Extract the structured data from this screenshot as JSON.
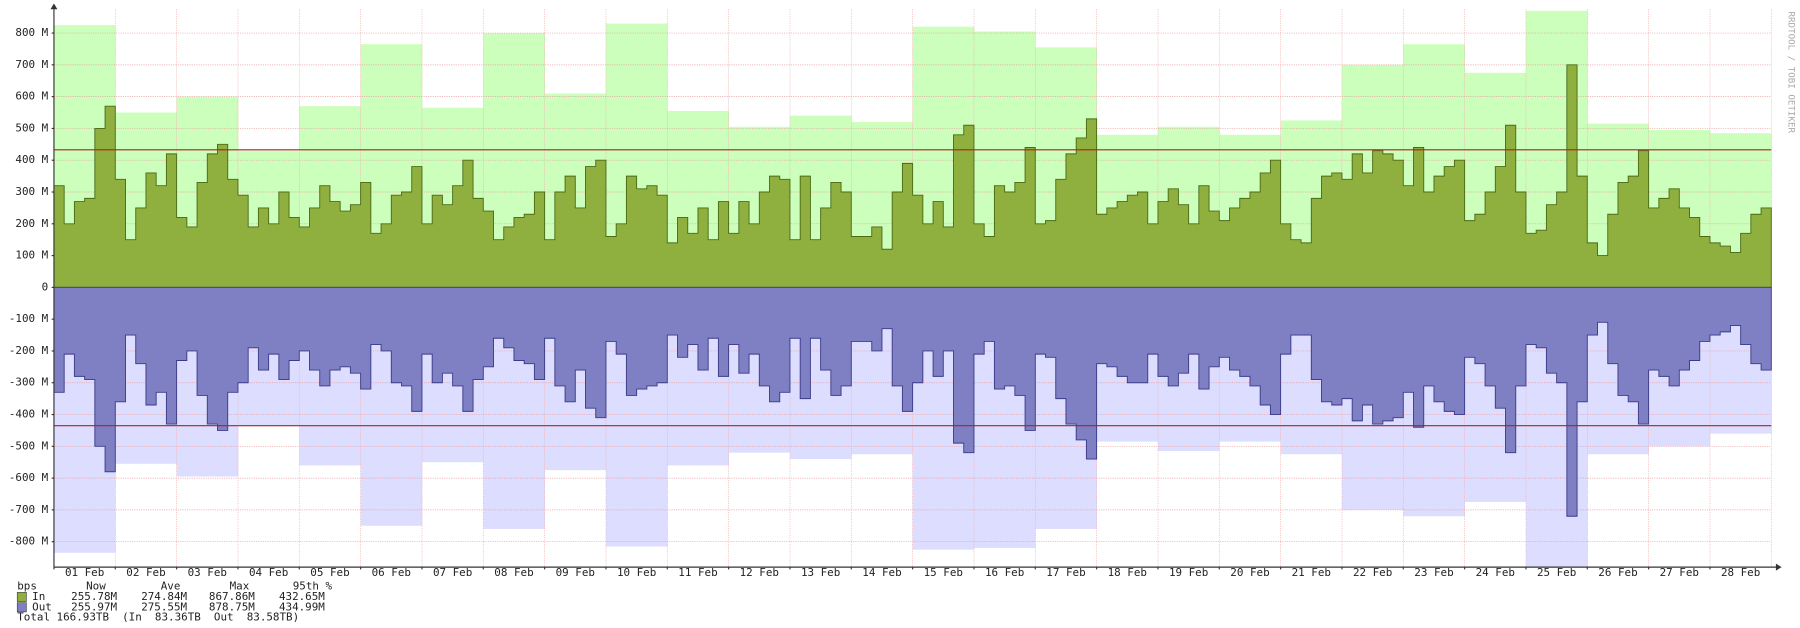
{
  "chart_data": {
    "type": "rrd-traffic",
    "categories": [
      "01 Feb",
      "02 Feb",
      "03 Feb",
      "04 Feb",
      "05 Feb",
      "06 Feb",
      "07 Feb",
      "08 Feb",
      "09 Feb",
      "10 Feb",
      "11 Feb",
      "12 Feb",
      "13 Feb",
      "14 Feb",
      "15 Feb",
      "16 Feb",
      "17 Feb",
      "18 Feb",
      "19 Feb",
      "20 Feb",
      "21 Feb",
      "22 Feb",
      "23 Feb",
      "24 Feb",
      "25 Feb",
      "26 Feb",
      "27 Feb",
      "28 Feb"
    ],
    "ylim": [
      -880,
      875
    ],
    "yticks": [
      {
        "value": -800,
        "label": "-800 M"
      },
      {
        "value": -700,
        "label": "-700 M"
      },
      {
        "value": -600,
        "label": "-600 M"
      },
      {
        "value": -500,
        "label": "-500 M"
      },
      {
        "value": -400,
        "label": "-400 M"
      },
      {
        "value": -300,
        "label": "-300 M"
      },
      {
        "value": -200,
        "label": "-200 M"
      },
      {
        "value": -100,
        "label": "-100 M"
      },
      0,
      {
        "value": 100,
        "label": "100 M"
      },
      {
        "value": 200,
        "label": "200 M"
      },
      {
        "value": 300,
        "label": "300 M"
      },
      {
        "value": 400,
        "label": "400 M"
      },
      {
        "value": 500,
        "label": "500 M"
      },
      {
        "value": 600,
        "label": "600 M"
      },
      {
        "value": 700,
        "label": "700 M"
      },
      {
        "value": 800,
        "label": "800 M"
      }
    ],
    "grid": true,
    "daily_max": [
      {
        "color": "#ccffbb",
        "values": [
          825,
          550,
          600,
          430,
          570,
          765,
          565,
          800,
          610,
          830,
          555,
          505,
          540,
          520,
          820,
          805,
          755,
          480,
          505,
          480,
          525,
          700,
          765,
          675,
          870,
          515,
          495,
          485
        ]
      },
      {
        "color": "#ddddff",
        "values": [
          -835,
          -555,
          -595,
          -435,
          -560,
          -750,
          -550,
          -760,
          -575,
          -815,
          -560,
          -520,
          -540,
          -525,
          -825,
          -820,
          -760,
          -485,
          -515,
          -485,
          -525,
          -700,
          -720,
          -675,
          -880,
          -525,
          -500,
          -460
        ]
      }
    ],
    "series": [
      {
        "name": "In",
        "color": "#8fb03f",
        "line_color": "#4a6a16",
        "values": [
          [
            320,
            200,
            270,
            280,
            500,
            570
          ],
          [
            340,
            150,
            250,
            360,
            320,
            420
          ],
          [
            220,
            190,
            330,
            420,
            450,
            340
          ],
          [
            290,
            190,
            250,
            200,
            300,
            220
          ],
          [
            190,
            250,
            320,
            270,
            240,
            260
          ],
          [
            330,
            170,
            200,
            290,
            300,
            380
          ],
          [
            200,
            290,
            260,
            320,
            400,
            280
          ],
          [
            240,
            150,
            190,
            220,
            230,
            300
          ],
          [
            150,
            300,
            350,
            250,
            380,
            400
          ],
          [
            160,
            200,
            350,
            310,
            320,
            290
          ],
          [
            140,
            220,
            170,
            250,
            150,
            270
          ],
          [
            170,
            270,
            200,
            300,
            350,
            340
          ],
          [
            150,
            350,
            150,
            250,
            330,
            300
          ],
          [
            160,
            160,
            190,
            120,
            300,
            390
          ],
          [
            290,
            200,
            270,
            190,
            480,
            510
          ],
          [
            200,
            160,
            320,
            300,
            330,
            440
          ],
          [
            200,
            210,
            340,
            420,
            470,
            530
          ],
          [
            230,
            250,
            270,
            290,
            300,
            200
          ],
          [
            270,
            310,
            260,
            200,
            320,
            240
          ],
          [
            210,
            250,
            280,
            300,
            360,
            400
          ],
          [
            200,
            150,
            140,
            280,
            350,
            360
          ],
          [
            340,
            420,
            360,
            430,
            420,
            400
          ],
          [
            320,
            440,
            300,
            350,
            380,
            400
          ],
          [
            210,
            230,
            300,
            380,
            510,
            300
          ],
          [
            170,
            180,
            260,
            300,
            700,
            350
          ],
          [
            140,
            100,
            230,
            330,
            350,
            430
          ],
          [
            250,
            280,
            310,
            250,
            220,
            160
          ],
          [
            140,
            130,
            110,
            170,
            230,
            250
          ]
        ]
      },
      {
        "name": "Out",
        "color": "#7f7fc4",
        "line_color": "#3a3a88",
        "values": [
          [
            -330,
            -210,
            -280,
            -290,
            -500,
            -580
          ],
          [
            -360,
            -150,
            -240,
            -370,
            -330,
            -430
          ],
          [
            -230,
            -200,
            -340,
            -430,
            -450,
            -330
          ],
          [
            -300,
            -190,
            -260,
            -210,
            -290,
            -230
          ],
          [
            -200,
            -260,
            -310,
            -260,
            -250,
            -270
          ],
          [
            -320,
            -180,
            -200,
            -300,
            -310,
            -390
          ],
          [
            -210,
            -300,
            -270,
            -310,
            -390,
            -290
          ],
          [
            -250,
            -160,
            -190,
            -230,
            -240,
            -290
          ],
          [
            -160,
            -310,
            -360,
            -260,
            -380,
            -410
          ],
          [
            -170,
            -210,
            -340,
            -320,
            -310,
            -300
          ],
          [
            -150,
            -220,
            -180,
            -260,
            -160,
            -280
          ],
          [
            -180,
            -270,
            -210,
            -310,
            -360,
            -330
          ],
          [
            -160,
            -350,
            -160,
            -260,
            -340,
            -310
          ],
          [
            -170,
            -170,
            -200,
            -130,
            -310,
            -390
          ],
          [
            -300,
            -200,
            -280,
            -200,
            -490,
            -520
          ],
          [
            -210,
            -170,
            -320,
            -310,
            -340,
            -450
          ],
          [
            -210,
            -220,
            -350,
            -430,
            -480,
            -540
          ],
          [
            -240,
            -250,
            -280,
            -300,
            -300,
            -210
          ],
          [
            -280,
            -310,
            -270,
            -210,
            -320,
            -250
          ],
          [
            -220,
            -260,
            -280,
            -310,
            -370,
            -400
          ],
          [
            -210,
            -150,
            -150,
            -290,
            -360,
            -370
          ],
          [
            -350,
            -420,
            -370,
            -430,
            -420,
            -410
          ],
          [
            -330,
            -440,
            -310,
            -360,
            -390,
            -400
          ],
          [
            -220,
            -240,
            -310,
            -380,
            -520,
            -310
          ],
          [
            -180,
            -190,
            -270,
            -300,
            -720,
            -360
          ],
          [
            -150,
            -110,
            -240,
            -340,
            -360,
            -430
          ],
          [
            -260,
            -280,
            -310,
            -260,
            -230,
            -170
          ],
          [
            -150,
            -140,
            -120,
            -180,
            -240,
            -260
          ]
        ]
      }
    ],
    "percentile_lines": [
      {
        "value": 432.65,
        "color": "#b02020"
      },
      {
        "value": -434.99,
        "color": "#b02020"
      }
    ],
    "watermark": "RRDTOOL / TOBI OETIKER",
    "legend": {
      "header": [
        "bps",
        "Now",
        "Ave",
        "Max",
        "95th %"
      ],
      "rows": [
        {
          "label": "In",
          "cells": [
            "255.78M",
            "274.84M",
            "867.86M",
            "432.65M"
          ]
        },
        {
          "label": "Out",
          "cells": [
            "255.97M",
            "275.55M",
            "878.75M",
            "434.99M"
          ]
        }
      ],
      "total": "Total 166.93TB  (In  83.36TB  Out  83.58TB)"
    }
  }
}
